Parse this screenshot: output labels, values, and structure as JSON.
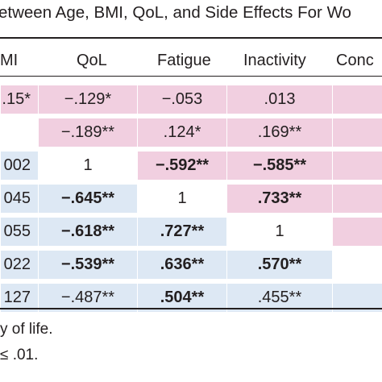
{
  "title": "etween Age, BMI, QoL, and Side Effects For Wo",
  "columns": [
    "MI",
    "QoL",
    "Fatigue",
    "Inactivity",
    "Conc"
  ],
  "rows": [
    {
      "cells": [
        {
          "text": ".15*",
          "bold": false,
          "fill": "pink"
        },
        {
          "text": "−.129*",
          "bold": false,
          "fill": "pink"
        },
        {
          "text": "−.053",
          "bold": false,
          "fill": "pink"
        },
        {
          "text": ".013",
          "bold": false,
          "fill": "pink"
        },
        {
          "text": "",
          "bold": false,
          "fill": "pink"
        }
      ]
    },
    {
      "cells": [
        {
          "text": "",
          "bold": false,
          "fill": "white"
        },
        {
          "text": "−.189**",
          "bold": false,
          "fill": "pink"
        },
        {
          "text": ".124*",
          "bold": false,
          "fill": "pink"
        },
        {
          "text": ".169**",
          "bold": false,
          "fill": "pink"
        },
        {
          "text": "",
          "bold": false,
          "fill": "pink"
        }
      ]
    },
    {
      "cells": [
        {
          "text": "002",
          "bold": false,
          "fill": "blue"
        },
        {
          "text": "1",
          "bold": false,
          "fill": "white"
        },
        {
          "text": "−.592**",
          "bold": true,
          "fill": "pink"
        },
        {
          "text": "−.585**",
          "bold": true,
          "fill": "pink"
        },
        {
          "text": "",
          "bold": false,
          "fill": "pink"
        }
      ]
    },
    {
      "cells": [
        {
          "text": "045",
          "bold": false,
          "fill": "blue"
        },
        {
          "text": "−.645**",
          "bold": true,
          "fill": "blue"
        },
        {
          "text": "1",
          "bold": false,
          "fill": "white"
        },
        {
          "text": ".733**",
          "bold": true,
          "fill": "pink"
        },
        {
          "text": "",
          "bold": false,
          "fill": "pink"
        }
      ]
    },
    {
      "cells": [
        {
          "text": "055",
          "bold": false,
          "fill": "blue"
        },
        {
          "text": "−.618**",
          "bold": true,
          "fill": "blue"
        },
        {
          "text": ".727**",
          "bold": true,
          "fill": "blue"
        },
        {
          "text": "1",
          "bold": false,
          "fill": "white"
        },
        {
          "text": "",
          "bold": false,
          "fill": "pink"
        }
      ]
    },
    {
      "cells": [
        {
          "text": "022",
          "bold": false,
          "fill": "blue"
        },
        {
          "text": "−.539**",
          "bold": true,
          "fill": "blue"
        },
        {
          "text": ".636**",
          "bold": true,
          "fill": "blue"
        },
        {
          "text": ".570**",
          "bold": true,
          "fill": "blue"
        },
        {
          "text": "",
          "bold": false,
          "fill": "white"
        }
      ]
    },
    {
      "cells": [
        {
          "text": "127",
          "bold": false,
          "fill": "blue"
        },
        {
          "text": "−.487**",
          "bold": false,
          "fill": "blue"
        },
        {
          "text": ".504**",
          "bold": true,
          "fill": "blue"
        },
        {
          "text": ".455**",
          "bold": false,
          "fill": "blue"
        },
        {
          "text": "",
          "bold": false,
          "fill": "blue"
        }
      ]
    }
  ],
  "notes": [
    "y of life.",
    "≤ .01."
  ]
}
